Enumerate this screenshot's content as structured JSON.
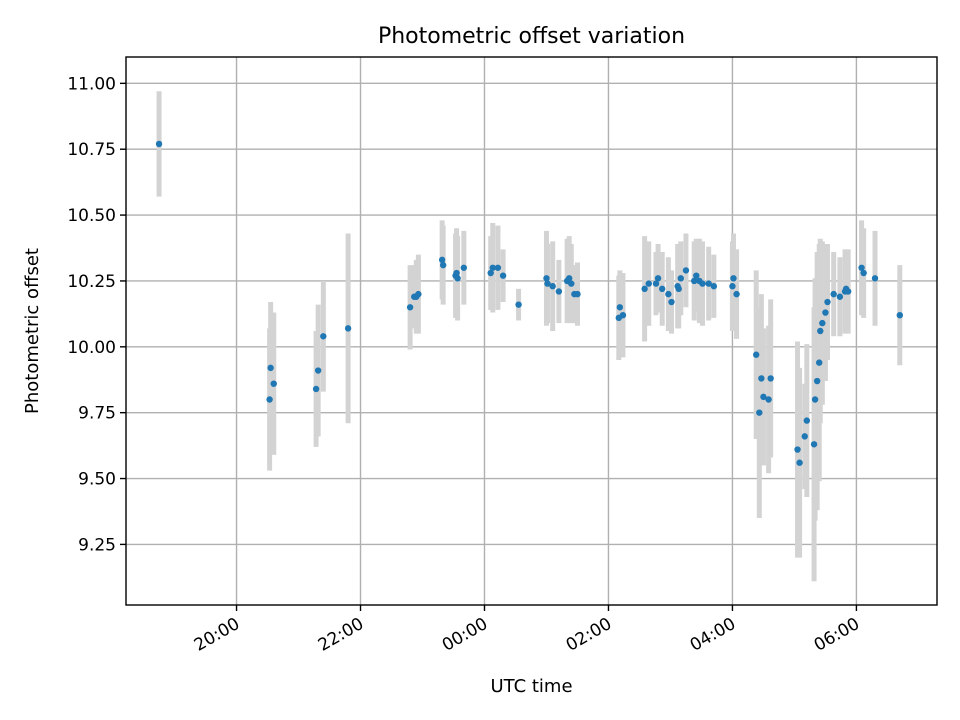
{
  "chart_data": {
    "type": "scatter",
    "title": "Photometric offset variation",
    "xlabel": "UTC time",
    "ylabel": "Photometric offset",
    "grid": true,
    "legend": "none",
    "point_color": "#1f77b4",
    "errorbar_color": "#d3d3d3",
    "xlim": [
      "18:13",
      "07:18"
    ],
    "ylim": [
      9.02,
      11.1
    ],
    "x_ticks": [
      "20:00",
      "22:00",
      "00:00",
      "02:00",
      "04:00",
      "06:00"
    ],
    "y_ticks": [
      "9.25",
      "9.50",
      "9.75",
      "10.00",
      "10.25",
      "10.50",
      "10.75",
      "11.00"
    ],
    "series": [
      {
        "x": [
          "18:45",
          "20:32",
          "20:33",
          "20:36",
          "21:17",
          "21:19",
          "21:24",
          "21:48",
          "22:48",
          "22:52",
          "22:54",
          "22:56",
          "23:19",
          "23:20",
          "23:32",
          "23:33",
          "23:34",
          "23:40",
          "00:06",
          "00:08",
          "00:13",
          "00:18",
          "00:33",
          "01:00",
          "01:01",
          "01:06",
          "01:12",
          "01:20",
          "01:22",
          "01:24",
          "01:27",
          "01:30",
          "02:10",
          "02:11",
          "02:14",
          "02:35",
          "02:39",
          "02:46",
          "02:48",
          "02:52",
          "02:58",
          "03:01",
          "03:07",
          "03:08",
          "03:10",
          "03:15",
          "03:23",
          "03:25",
          "03:28",
          "03:31",
          "03:37",
          "03:42",
          "04:00",
          "04:01",
          "04:04",
          "04:23",
          "04:26",
          "04:28",
          "04:30",
          "04:35",
          "04:37",
          "05:03",
          "05:05",
          "05:10",
          "05:12",
          "05:19",
          "05:20",
          "05:22",
          "05:24",
          "05:25",
          "05:27",
          "05:30",
          "05:32",
          "05:38",
          "05:44",
          "05:49",
          "05:50",
          "05:52",
          "06:05",
          "06:07",
          "06:18",
          "06:42"
        ],
        "y": [
          10.77,
          9.8,
          9.92,
          9.86,
          9.84,
          9.91,
          10.04,
          10.07,
          10.15,
          10.19,
          10.19,
          10.2,
          10.33,
          10.31,
          10.27,
          10.28,
          10.26,
          10.3,
          10.28,
          10.3,
          10.3,
          10.27,
          10.16,
          10.26,
          10.24,
          10.23,
          10.21,
          10.25,
          10.26,
          10.24,
          10.2,
          10.2,
          10.11,
          10.15,
          10.12,
          10.22,
          10.24,
          10.24,
          10.26,
          10.22,
          10.2,
          10.17,
          10.23,
          10.22,
          10.26,
          10.29,
          10.25,
          10.27,
          10.25,
          10.24,
          10.24,
          10.23,
          10.23,
          10.26,
          10.2,
          9.97,
          9.75,
          9.88,
          9.81,
          9.8,
          9.88,
          9.61,
          9.56,
          9.66,
          9.72,
          9.63,
          9.8,
          9.87,
          9.94,
          10.06,
          10.09,
          10.13,
          10.17,
          10.2,
          10.19,
          10.21,
          10.22,
          10.21,
          10.3,
          10.28,
          10.26,
          10.12
        ],
        "err": [
          0.2,
          0.27,
          0.25,
          0.27,
          0.22,
          0.25,
          0.21,
          0.36,
          0.16,
          0.12,
          0.14,
          0.15,
          0.15,
          0.15,
          0.16,
          0.17,
          0.16,
          0.14,
          0.14,
          0.17,
          0.16,
          0.1,
          0.06,
          0.18,
          0.15,
          0.17,
          0.12,
          0.16,
          0.16,
          0.15,
          0.11,
          0.12,
          0.16,
          0.14,
          0.16,
          0.2,
          0.16,
          0.12,
          0.13,
          0.14,
          0.14,
          0.12,
          0.16,
          0.15,
          0.14,
          0.14,
          0.15,
          0.14,
          0.16,
          0.16,
          0.14,
          0.12,
          0.17,
          0.17,
          0.17,
          0.32,
          0.4,
          0.32,
          0.26,
          0.28,
          0.3,
          0.41,
          0.36,
          0.2,
          0.29,
          0.52,
          0.46,
          0.49,
          0.45,
          0.35,
          0.31,
          0.26,
          0.22,
          0.16,
          0.15,
          0.16,
          0.14,
          0.16,
          0.18,
          0.17,
          0.18,
          0.19
        ]
      }
    ]
  }
}
